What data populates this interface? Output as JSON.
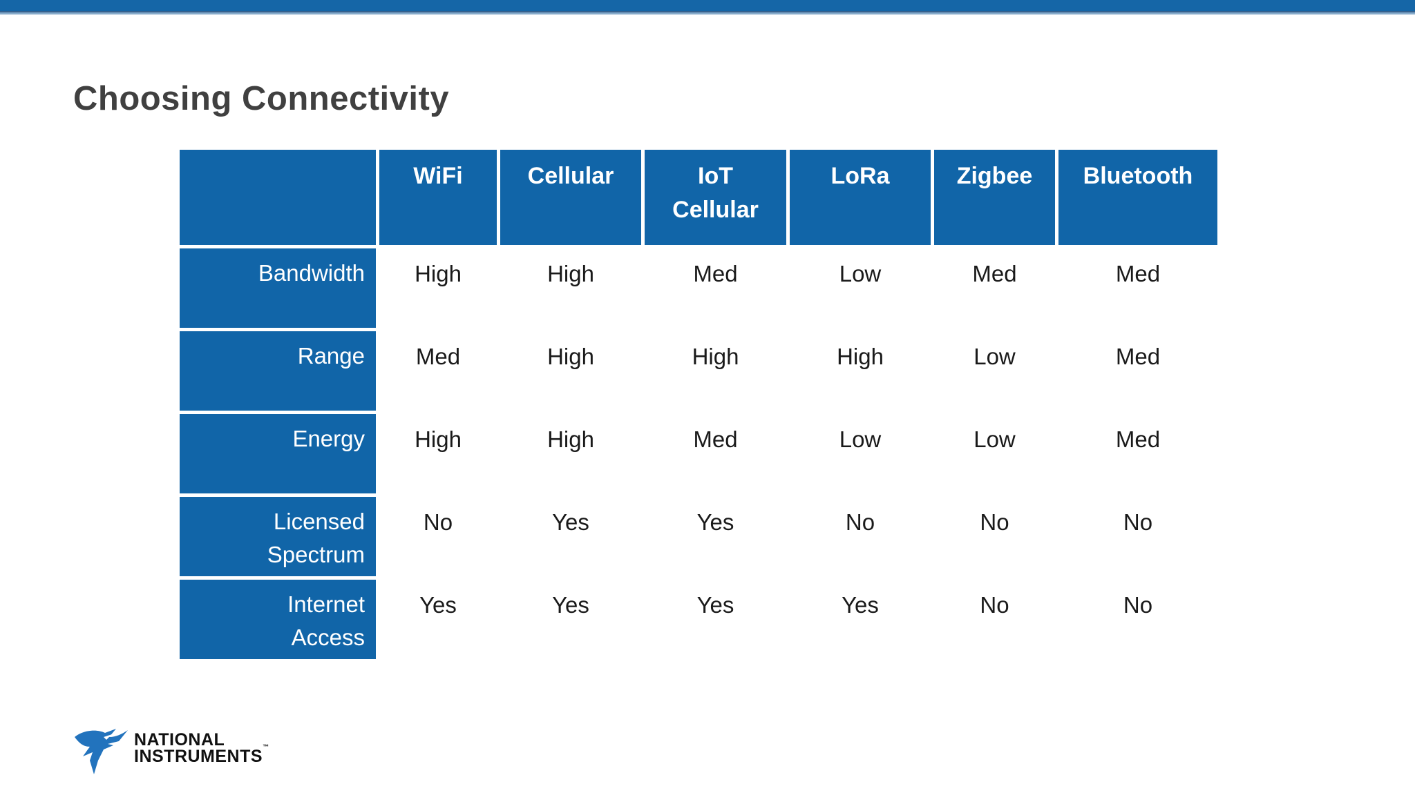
{
  "title": "Choosing Connectivity",
  "table": {
    "columns": [
      "WiFi",
      "Cellular",
      "IoT Cellular",
      "LoRa",
      "Zigbee",
      "Bluetooth"
    ],
    "rows": [
      {
        "label": "Bandwidth",
        "values": [
          "High",
          "High",
          "Med",
          "Low",
          "Med",
          "Med"
        ]
      },
      {
        "label": "Range",
        "values": [
          "Med",
          "High",
          "High",
          "High",
          "Low",
          "Med"
        ]
      },
      {
        "label": "Energy",
        "values": [
          "High",
          "High",
          "Med",
          "Low",
          "Low",
          "Med"
        ]
      },
      {
        "label": "Licensed Spectrum",
        "values": [
          "No",
          "Yes",
          "Yes",
          "No",
          "No",
          "No"
        ]
      },
      {
        "label": "Internet Access",
        "values": [
          "Yes",
          "Yes",
          "Yes",
          "Yes",
          "No",
          "No"
        ]
      }
    ]
  },
  "logo": {
    "line1": "NATIONAL",
    "line2": "INSTRUMENTS",
    "trademark": "™"
  },
  "colors": {
    "accent_blue": "#1165a8",
    "top_bar_blue": "#1566a7",
    "top_bar_light_edge": "#86abcb",
    "row_dark": "#c9cdda",
    "row_light": "#e7e9f0",
    "title_gray": "#404040",
    "logo_blue": "#2273bd"
  }
}
